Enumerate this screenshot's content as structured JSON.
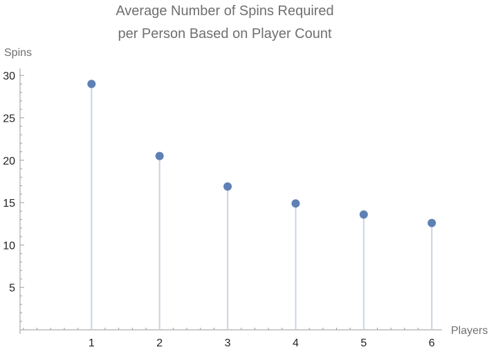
{
  "chart_data": {
    "type": "scatter",
    "title_lines": [
      "Average Number of Spins Required",
      "per Person Based on Player Count"
    ],
    "xlabel": "Players",
    "ylabel": "Spins",
    "x": [
      1,
      2,
      3,
      4,
      5,
      6
    ],
    "y": [
      29.0,
      20.5,
      16.9,
      14.9,
      13.6,
      12.6
    ],
    "xlim": [
      -0.05,
      6.15
    ],
    "ylim": [
      0,
      30.5
    ],
    "x_ticks": [
      1,
      2,
      3,
      4,
      5,
      6
    ],
    "y_ticks": [
      5,
      10,
      15,
      20,
      25,
      30
    ],
    "x_tick_labels": [
      "1",
      "2",
      "3",
      "4",
      "5",
      "6"
    ],
    "y_tick_labels": [
      "5",
      "10",
      "15",
      "20",
      "25",
      "30"
    ],
    "grid": false,
    "stems": true,
    "point_color": "#5e81b5",
    "stem_color": "#c8d4e4",
    "axis_color": "#9a9a9a"
  }
}
